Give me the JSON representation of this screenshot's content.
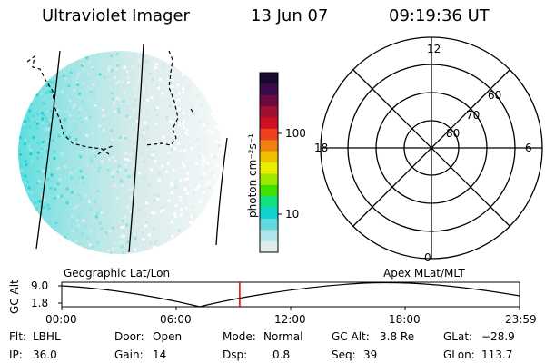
{
  "header": {
    "title": "Ultraviolet Imager",
    "date": "13 Jun 07",
    "time": "09:19:36 UT"
  },
  "projection": {
    "left_label": "Geographic Lat/Lon",
    "right_label": "Apex MLat/MLT"
  },
  "colorbar": {
    "label": "photon cm⁻²s⁻¹",
    "ticks": [
      "100",
      "10"
    ],
    "colors": [
      "#1a0a2e",
      "#3a0a4a",
      "#6a0a40",
      "#a01030",
      "#d01020",
      "#f04020",
      "#f08010",
      "#f0c000",
      "#e8f000",
      "#a0e800",
      "#40e000",
      "#10e080",
      "#10d0d0",
      "#60d8e0",
      "#b0e4e8",
      "#e0ecec"
    ]
  },
  "polar": {
    "mlt_labels": [
      "12",
      "18",
      "6",
      "0"
    ],
    "mlat_labels": [
      "60",
      "70",
      "80"
    ]
  },
  "altitude_plot": {
    "ylabel": "GC Alt",
    "y_ticks": [
      "9.0",
      "1.8"
    ],
    "x_ticks": [
      "00:00",
      "06:00",
      "12:00",
      "18:00",
      "23:59"
    ],
    "current_time_marker_hour": 9.33
  },
  "status": {
    "flt_label": "Flt:",
    "flt_value": "LBHL",
    "ip_label": "IP:",
    "ip_value": "36.0",
    "door_label": "Door:",
    "door_value": "Open",
    "gain_label": "Gain:",
    "gain_value": "14",
    "mode_label": "Mode:",
    "mode_value": "Normal",
    "dsp_label": "Dsp:",
    "dsp_value": "0.8",
    "gcalt_label": "GC Alt:",
    "gcalt_value": "3.8 Re",
    "seq_label": "Seq:",
    "seq_value": "39",
    "glat_label": "GLat:",
    "glat_value": "−28.9",
    "glon_label": "GLon:",
    "glon_value": "113.7"
  }
}
